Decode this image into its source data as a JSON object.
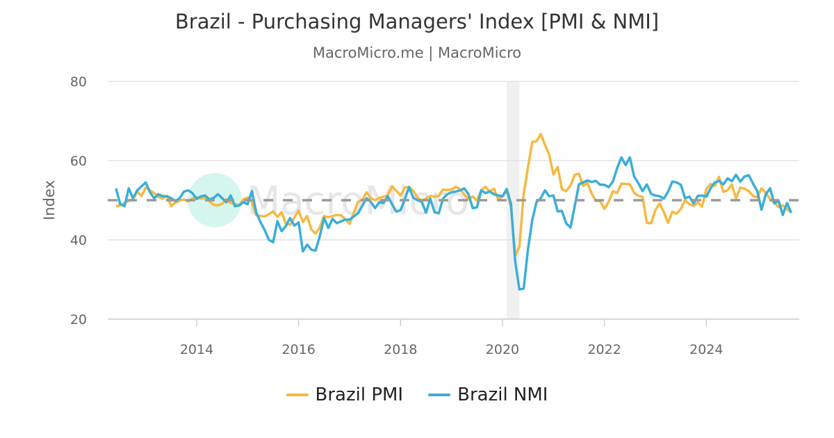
{
  "chart_data": {
    "type": "line",
    "title": "Brazil - Purchasing Managers' Index [PMI & NMI]",
    "subtitle": "MacroMicro.me | MacroMicro",
    "ylabel": "Index",
    "xlabel": "",
    "ylim": [
      20,
      80
    ],
    "yticks": [
      "20",
      "40",
      "60",
      "80"
    ],
    "xticks": [
      "2014",
      "2016",
      "2018",
      "2020",
      "2022",
      "2024"
    ],
    "x_start": "2012-06",
    "x_end": "2025-09",
    "frequency": "monthly",
    "grid": true,
    "legend_position": "bottom",
    "reference_line": 50,
    "shaded_period": [
      "2020-02",
      "2020-04"
    ],
    "watermark": "MacroMicro",
    "series": [
      {
        "name": "Brazil PMI",
        "color": "#f5b942",
        "values": [
          48.5,
          48.7,
          49.3,
          49.8,
          50.2,
          52.2,
          51.1,
          53.2,
          52.5,
          51.8,
          50.8,
          50.4,
          51.1,
          48.5,
          49.4,
          49.9,
          50.2,
          49.7,
          50.5,
          50.8,
          50.4,
          50.6,
          49.7,
          48.8,
          48.7,
          49.1,
          50.2,
          49.3,
          49.1,
          48.7,
          50.2,
          50.7,
          49.6,
          46.2,
          46.0,
          45.9,
          46.5,
          47.2,
          45.8,
          47.0,
          44.1,
          43.8,
          45.6,
          47.4,
          44.5,
          46.0,
          42.6,
          41.6,
          43.2,
          46.0,
          45.7,
          46.0,
          46.3,
          46.2,
          45.2,
          44.0,
          46.9,
          49.6,
          50.1,
          52.0,
          50.5,
          50.0,
          50.6,
          50.9,
          51.2,
          53.5,
          52.4,
          51.2,
          53.2,
          53.4,
          52.3,
          50.7,
          49.8,
          50.5,
          51.1,
          50.9,
          51.1,
          52.7,
          52.6,
          52.7,
          53.4,
          52.8,
          51.5,
          50.2,
          51.0,
          49.9,
          52.5,
          53.4,
          52.2,
          52.9,
          50.2,
          51.0,
          52.3,
          48.4,
          36.0,
          38.3,
          51.6,
          58.2,
          64.7,
          64.9,
          66.7,
          64.0,
          61.5,
          56.5,
          58.4,
          52.8,
          52.3,
          53.7,
          56.4,
          56.7,
          53.6,
          54.4,
          51.7,
          49.8,
          49.8,
          47.8,
          49.6,
          52.3,
          51.8,
          54.2,
          54.1,
          54.0,
          51.9,
          51.1,
          50.8,
          44.3,
          44.2,
          47.5,
          49.2,
          47.0,
          44.3,
          47.1,
          46.6,
          47.8,
          50.1,
          49.0,
          48.6,
          49.4,
          48.4,
          52.8,
          54.1,
          53.6,
          55.9,
          52.1,
          52.5,
          54.0,
          50.4,
          53.2,
          52.9,
          52.3,
          51.1,
          50.7,
          53.0,
          51.8,
          50.3,
          49.4,
          48.3,
          48.7,
          47.7,
          47.0
        ]
      },
      {
        "name": "Brazil NMI",
        "color": "#3aaed8",
        "values": [
          53.0,
          49.0,
          48.5,
          53.0,
          50.5,
          52.5,
          53.5,
          54.5,
          52.0,
          50.5,
          51.5,
          51.0,
          51.0,
          50.5,
          49.8,
          50.5,
          52.2,
          52.5,
          51.8,
          50.3,
          51.0,
          51.2,
          50.2,
          50.6,
          51.5,
          50.5,
          49.5,
          51.2,
          48.5,
          48.7,
          49.5,
          49.0,
          52.3,
          47.0,
          44.5,
          42.5,
          40.0,
          39.4,
          44.7,
          42.2,
          43.5,
          45.5,
          43.6,
          44.4,
          37.1,
          38.8,
          37.5,
          37.3,
          41.0,
          45.5,
          43.0,
          45.3,
          44.2,
          44.7,
          45.1,
          45.1,
          45.9,
          46.7,
          48.6,
          50.5,
          49.6,
          48.0,
          49.5,
          49.3,
          51.0,
          49.0,
          47.1,
          47.5,
          50.2,
          53.3,
          50.6,
          50.0,
          49.6,
          46.9,
          50.4,
          47.0,
          46.7,
          50.4,
          51.5,
          52.0,
          52.2,
          52.5,
          53.0,
          51.5,
          48.0,
          48.2,
          52.5,
          51.8,
          52.2,
          51.5,
          51.2,
          51.0,
          52.8,
          49.1,
          34.5,
          27.5,
          27.7,
          37.5,
          45.0,
          49.5,
          50.5,
          52.5,
          51.0,
          51.2,
          47.2,
          47.3,
          44.2,
          43.1,
          48.5,
          54.0,
          54.5,
          55.0,
          54.6,
          54.9,
          53.9,
          53.9,
          53.3,
          54.7,
          58.1,
          60.8,
          58.9,
          60.8,
          56.0,
          54.3,
          52.3,
          54.0,
          51.6,
          51.2,
          51.0,
          50.4,
          52.2,
          54.7,
          54.5,
          53.9,
          50.5,
          50.9,
          49.2,
          51.1,
          51.2,
          50.9,
          53.0,
          54.5,
          54.9,
          54.0,
          55.5,
          54.8,
          56.4,
          54.7,
          56.0,
          56.3,
          54.2,
          52.3,
          47.6,
          51.5,
          53.0,
          49.2,
          49.9,
          46.3,
          49.3,
          46.8
        ]
      }
    ]
  }
}
